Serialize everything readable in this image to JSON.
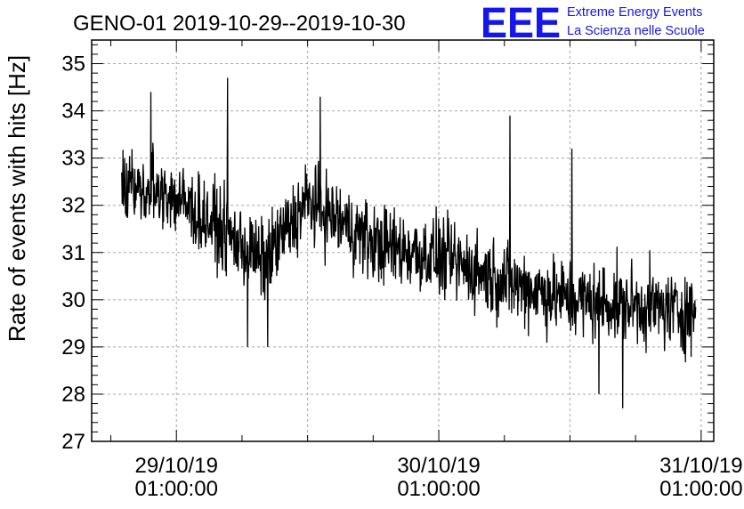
{
  "chart_data": {
    "type": "line",
    "title": "GENO-01 2019-10-29--2019-10-30",
    "xlabel": "",
    "ylabel": "Rate of events with hits [Hz]",
    "ylim": [
      27,
      35.5
    ],
    "xlim_days": [
      -0.323,
      2.048
    ],
    "yticks": [
      "27",
      "28",
      "29",
      "30",
      "31",
      "32",
      "33",
      "34",
      "35"
    ],
    "xticks": [
      {
        "line1": "29/10/19",
        "line2": "01:00:00"
      },
      {
        "line1": "30/10/19",
        "line2": "01:00:00"
      },
      {
        "line1": "31/10/19",
        "line2": "01:00:00"
      }
    ],
    "grid": true,
    "series": [
      {
        "x_start": "2019-10-28 20:00",
        "x_end": "2019-10-31 00:30",
        "trend": [
          {
            "x": "2019-10-28 20:00",
            "y": 32.4
          },
          {
            "x": "2019-10-29 00:00",
            "y": 32.3
          },
          {
            "x": "2019-10-29 05:00",
            "y": 31.5
          },
          {
            "x": "2019-10-29 09:00",
            "y": 30.8
          },
          {
            "x": "2019-10-29 13:00",
            "y": 32.1
          },
          {
            "x": "2019-10-29 19:00",
            "y": 31.2
          },
          {
            "x": "2019-10-30 01:00",
            "y": 30.9
          },
          {
            "x": "2019-10-30 07:00",
            "y": 30.4
          },
          {
            "x": "2019-10-30 13:00",
            "y": 30.0
          },
          {
            "x": "2019-10-30 19:00",
            "y": 29.9
          },
          {
            "x": "2019-10-31 00:30",
            "y": 29.7
          }
        ],
        "noise_amplitude": 0.55,
        "spikes": [
          {
            "x": "2019-10-28 22:40",
            "y": 34.4
          },
          {
            "x": "2019-10-29 05:40",
            "y": 34.7
          },
          {
            "x": "2019-10-29 14:10",
            "y": 34.3
          },
          {
            "x": "2019-10-30 07:30",
            "y": 33.9
          },
          {
            "x": "2019-10-30 13:10",
            "y": 33.2
          },
          {
            "x": "2019-10-29 07:30",
            "y": 29.0
          },
          {
            "x": "2019-10-29 09:20",
            "y": 29.0
          },
          {
            "x": "2019-10-30 15:40",
            "y": 28.0
          },
          {
            "x": "2019-10-30 17:50",
            "y": 27.7
          }
        ]
      }
    ]
  },
  "logo": {
    "letters": "EEE",
    "line1": "Extreme Energy Events",
    "line2": "La Scienza nelle Scuole"
  },
  "colors": {
    "logo": "#1515ee",
    "series": "#000000",
    "grid": "#a8a8a8"
  }
}
